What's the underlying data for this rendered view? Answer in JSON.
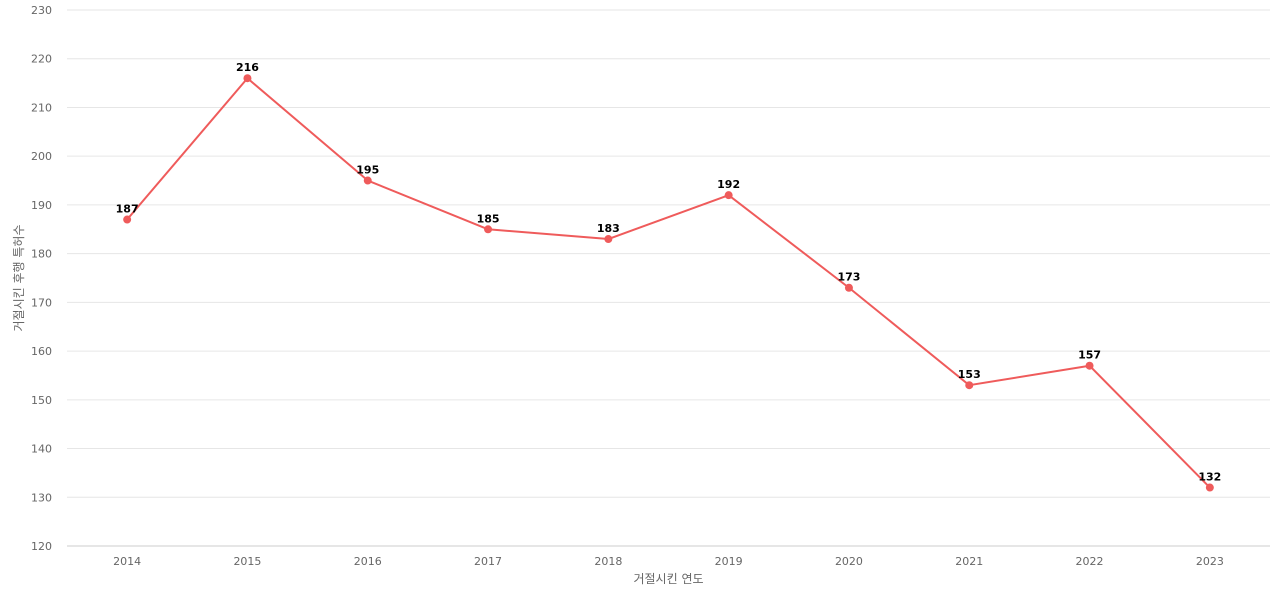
{
  "chart_data": {
    "type": "line",
    "categories": [
      "2014",
      "2015",
      "2016",
      "2017",
      "2018",
      "2019",
      "2020",
      "2021",
      "2022",
      "2023"
    ],
    "series": [
      {
        "values": [
          187,
          216,
          195,
          185,
          183,
          192,
          173,
          153,
          157,
          132
        ],
        "color": "#ef5b5b"
      }
    ],
    "xlabel": "거절시킨 연도",
    "ylabel": "거절시킨 후행 특허수",
    "ylim": [
      120,
      230
    ],
    "yticks": [
      120,
      130,
      140,
      150,
      160,
      170,
      180,
      190,
      200,
      210,
      220,
      230
    ],
    "grid": true,
    "legend": "none",
    "data_labels": true
  }
}
